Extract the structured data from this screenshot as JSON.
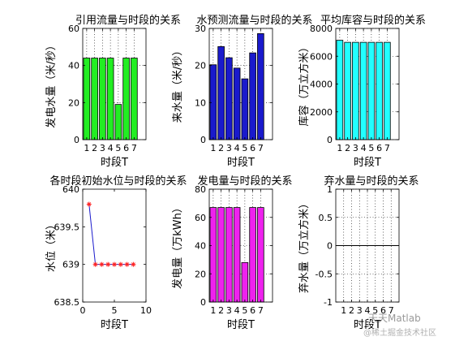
{
  "watermark": {
    "line1": "天天Matlab",
    "line2": "@稀土掘金技术社区"
  },
  "chart_data": [
    {
      "type": "bar",
      "title": "引用流量与时段的关系",
      "xlabel": "时段T",
      "ylabel": "发电水量（米/秒）",
      "categories": [
        "1",
        "2",
        "3",
        "4",
        "5",
        "6",
        "7"
      ],
      "values": [
        44,
        44,
        44,
        44,
        19,
        44,
        44
      ],
      "ylim": [
        0,
        60
      ],
      "yticks": [
        "0",
        "20",
        "40",
        "60"
      ],
      "bar_color": "#22ee22",
      "grid": true
    },
    {
      "type": "bar",
      "title": "水预测流量与时段的关系",
      "xlabel": "时段T",
      "ylabel": "来水量（米/秒）",
      "categories": [
        "1",
        "2",
        "3",
        "4",
        "5",
        "6",
        "7"
      ],
      "values": [
        20.2,
        25.1,
        22.1,
        19.3,
        16.4,
        23.4,
        28.6
      ],
      "ylim": [
        0,
        30
      ],
      "yticks": [
        "0",
        "10",
        "20",
        "30"
      ],
      "bar_color": "#1a1acc",
      "grid": true
    },
    {
      "type": "bar",
      "title": "平均库容与时段的关系",
      "xlabel": "时段T",
      "ylabel": "库容（万立方米）",
      "categories": [
        "1",
        "2",
        "3",
        "4",
        "5",
        "6",
        "7"
      ],
      "values": [
        7150,
        7000,
        7000,
        7000,
        7000,
        7000,
        7000
      ],
      "ylim": [
        0,
        8000
      ],
      "yticks": [
        "0",
        "2000",
        "4000",
        "6000",
        "8000"
      ],
      "bar_color": "#22ffff",
      "grid": true
    },
    {
      "type": "line",
      "title": "各时段初始水位与时段的关系",
      "xlabel": "时段T",
      "ylabel": "水位（米）",
      "x": [
        1,
        2,
        3,
        4,
        5,
        6,
        7,
        8
      ],
      "y": [
        639.8,
        639,
        639,
        639,
        639,
        639,
        639,
        639
      ],
      "xlim": [
        0,
        10
      ],
      "ylim": [
        638.5,
        640
      ],
      "xticks": [
        "0",
        "5",
        "10"
      ],
      "yticks": [
        "638.5",
        "639",
        "639.5",
        "640"
      ],
      "line_color": "#1a1acc",
      "marker_color": "#ff2222",
      "grid": false
    },
    {
      "type": "bar",
      "title": "发电量与时段的关系",
      "xlabel": "时段T",
      "ylabel": "发电量（万kWh）",
      "categories": [
        "1",
        "2",
        "3",
        "4",
        "5",
        "6",
        "7"
      ],
      "values": [
        67,
        67,
        67,
        67,
        28,
        67,
        67
      ],
      "ylim": [
        0,
        80
      ],
      "yticks": [
        "0",
        "20",
        "40",
        "60",
        "80"
      ],
      "bar_color": "#ee22ee",
      "grid": true
    },
    {
      "type": "line",
      "title": "弃水量与时段的关系",
      "xlabel": "时段T",
      "ylabel": "弃水量（万立方米）",
      "categories": [
        "1",
        "2",
        "3",
        "4",
        "5",
        "6",
        "7"
      ],
      "x": [
        0,
        8
      ],
      "y": [
        0,
        0
      ],
      "xlim": [
        0,
        8
      ],
      "ylim": [
        -1,
        1
      ],
      "yticks": [
        "-1",
        "-0.5",
        "0",
        "0.5",
        "1"
      ],
      "line_color": "#000000",
      "grid": true
    }
  ]
}
